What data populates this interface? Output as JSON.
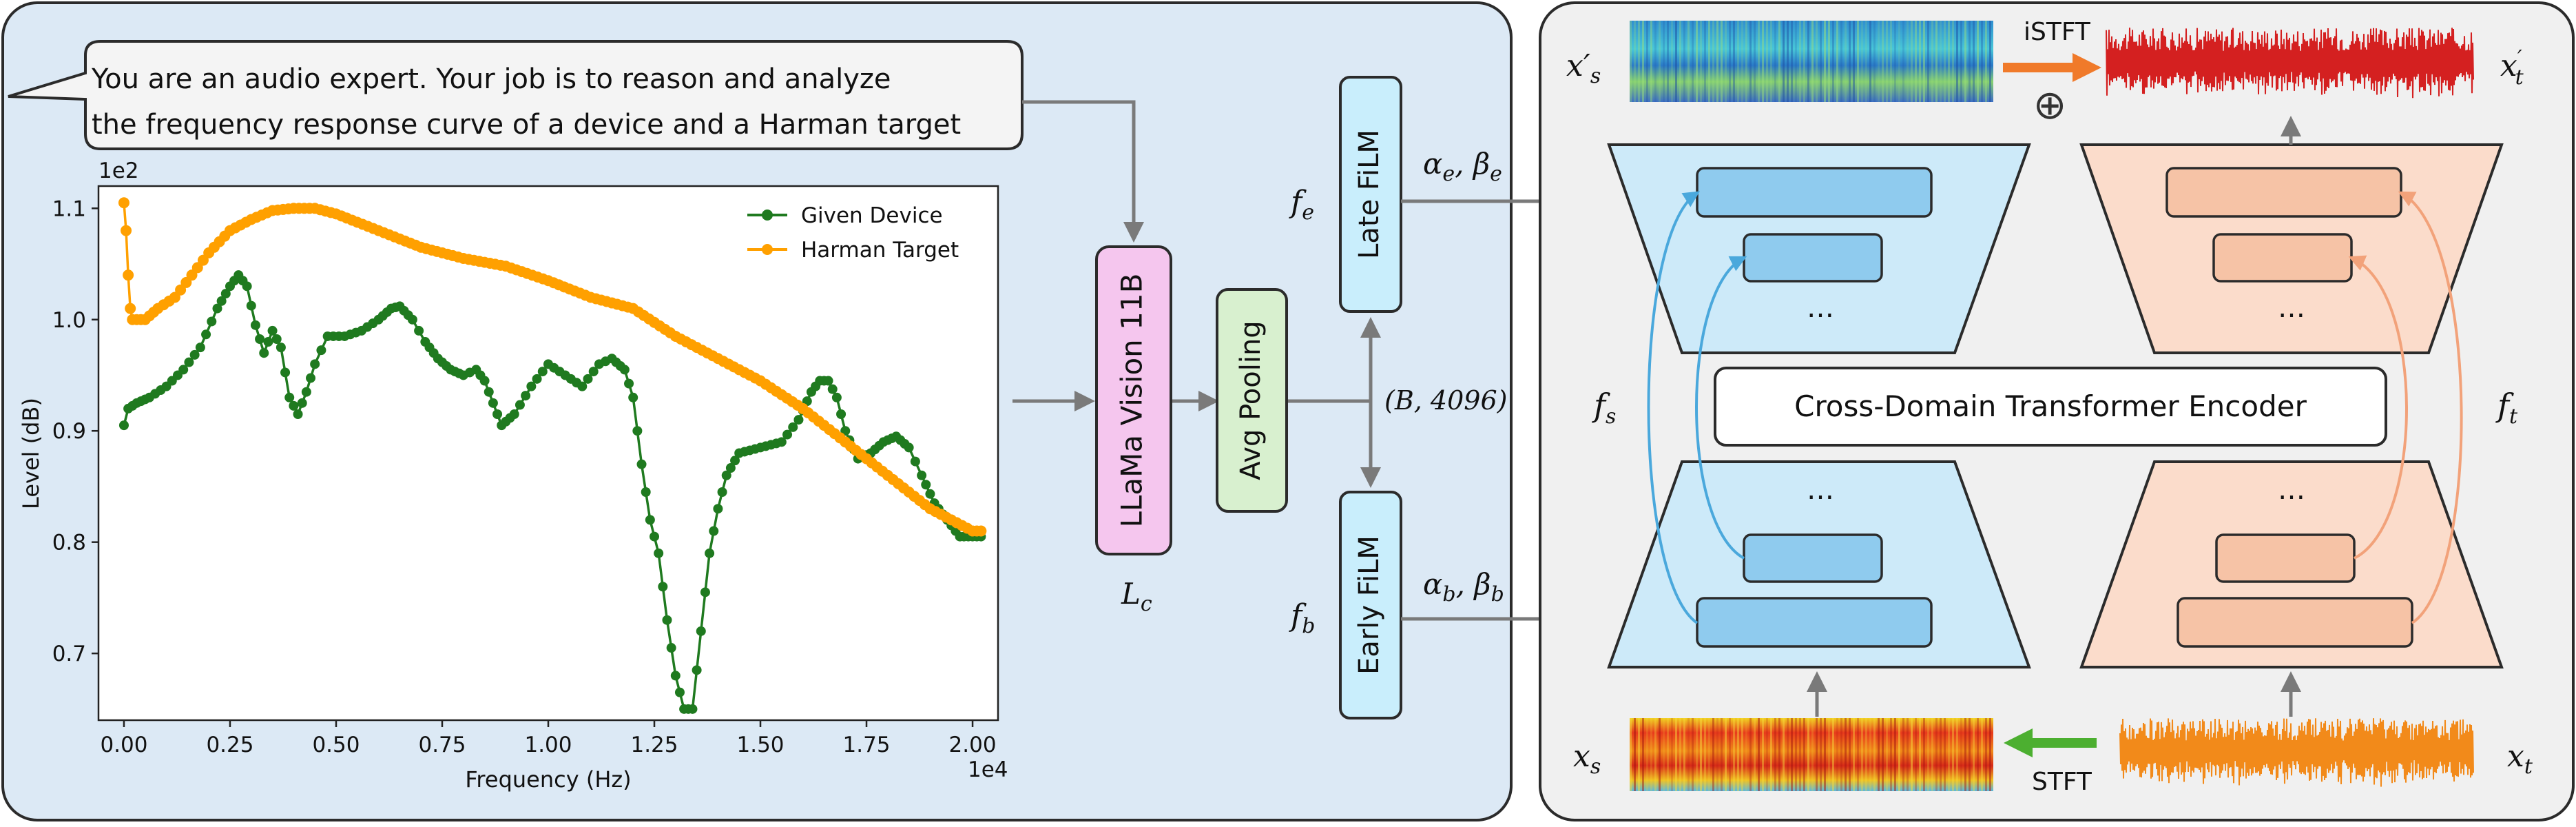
{
  "prompt": {
    "line1": "You are an audio expert. Your job is to reason and analyze",
    "line2": "the frequency response curve of a device and a Harman target"
  },
  "chart_data": {
    "type": "line",
    "title": "",
    "xlabel": "Frequency (Hz)",
    "ylabel": "Level (dB)",
    "x_multiplier": "1e4",
    "y_multiplier": "1e2",
    "xlim": [
      -0.06,
      2.06
    ],
    "ylim": [
      0.64,
      1.12
    ],
    "x_ticks": [
      0.0,
      0.25,
      0.5,
      0.75,
      1.0,
      1.25,
      1.5,
      1.75,
      2.0
    ],
    "x_tick_labels": [
      "0.00",
      "0.25",
      "0.50",
      "0.75",
      "1.00",
      "1.25",
      "1.50",
      "1.75",
      "2.00"
    ],
    "y_ticks": [
      0.7,
      0.8,
      0.9,
      1.0,
      1.1
    ],
    "y_tick_labels": [
      "0.7",
      "0.8",
      "0.9",
      "1.0",
      "1.1"
    ],
    "legend_position": "top-right",
    "grid": false,
    "series": [
      {
        "name": "Given Device",
        "color": "#1f7a1f",
        "x": [
          0.0,
          0.01,
          0.03,
          0.06,
          0.1,
          0.14,
          0.18,
          0.22,
          0.25,
          0.27,
          0.29,
          0.31,
          0.33,
          0.35,
          0.37,
          0.39,
          0.41,
          0.43,
          0.45,
          0.48,
          0.52,
          0.56,
          0.6,
          0.63,
          0.65,
          0.68,
          0.71,
          0.74,
          0.77,
          0.8,
          0.83,
          0.85,
          0.87,
          0.89,
          0.92,
          0.96,
          1.0,
          1.04,
          1.08,
          1.12,
          1.15,
          1.18,
          1.2,
          1.22,
          1.24,
          1.26,
          1.28,
          1.3,
          1.32,
          1.34,
          1.36,
          1.38,
          1.4,
          1.42,
          1.45,
          1.5,
          1.55,
          1.59,
          1.62,
          1.64,
          1.66,
          1.68,
          1.7,
          1.73,
          1.76,
          1.79,
          1.82,
          1.85,
          1.88,
          1.91,
          1.94,
          1.97,
          2.0,
          2.02
        ],
        "y": [
          0.905,
          0.92,
          0.925,
          0.93,
          0.94,
          0.955,
          0.975,
          1.01,
          1.03,
          1.04,
          1.03,
          0.995,
          0.97,
          0.99,
          0.975,
          0.93,
          0.915,
          0.935,
          0.96,
          0.985,
          0.985,
          0.99,
          1.0,
          1.01,
          1.012,
          1.0,
          0.98,
          0.965,
          0.955,
          0.95,
          0.955,
          0.945,
          0.925,
          0.905,
          0.915,
          0.94,
          0.96,
          0.95,
          0.94,
          0.96,
          0.965,
          0.955,
          0.93,
          0.87,
          0.82,
          0.79,
          0.73,
          0.68,
          0.65,
          0.65,
          0.72,
          0.79,
          0.83,
          0.86,
          0.88,
          0.885,
          0.89,
          0.91,
          0.935,
          0.945,
          0.945,
          0.93,
          0.9,
          0.875,
          0.88,
          0.89,
          0.895,
          0.885,
          0.86,
          0.835,
          0.82,
          0.805,
          0.805,
          0.805
        ]
      },
      {
        "name": "Harman Target",
        "color": "#ffa000",
        "x": [
          0.0,
          0.005,
          0.01,
          0.015,
          0.02,
          0.03,
          0.05,
          0.08,
          0.12,
          0.16,
          0.2,
          0.25,
          0.3,
          0.35,
          0.4,
          0.45,
          0.5,
          0.6,
          0.7,
          0.8,
          0.9,
          1.0,
          1.1,
          1.2,
          1.3,
          1.4,
          1.5,
          1.6,
          1.7,
          1.8,
          1.9,
          2.0,
          2.02
        ],
        "y": [
          1.105,
          1.08,
          1.04,
          1.01,
          1.0,
          1.0,
          1.0,
          1.01,
          1.02,
          1.04,
          1.06,
          1.08,
          1.09,
          1.098,
          1.1,
          1.1,
          1.095,
          1.08,
          1.065,
          1.055,
          1.048,
          1.035,
          1.02,
          1.01,
          0.985,
          0.965,
          0.945,
          0.92,
          0.89,
          0.86,
          0.83,
          0.81,
          0.81
        ]
      }
    ]
  },
  "blocks": {
    "llama": "LLaMa Vision 11B",
    "avg_pool": "Avg Pooling",
    "late_film": "Late FiLM",
    "early_film": "Early FiLM",
    "transformer": "Cross-Domain Transformer Encoder",
    "istft": "iSTFT",
    "stft": "STFT",
    "ellipsis": "…",
    "oplus": "⊕"
  },
  "math": {
    "Lc": "L",
    "Lc_sub": "c",
    "shape": "(B, 4096)",
    "fe": "f",
    "fe_sub": "e",
    "fb": "f",
    "fb_sub": "b",
    "ae_be": "α",
    "ae_sub": "e",
    "be": "β",
    "be_sub": "e",
    "ab_bb": "α",
    "ab_sub": "b",
    "bb": "β",
    "bb_sub": "b",
    "fs": "f",
    "fs_sub": "s",
    "ft": "f",
    "ft_sub": "t",
    "xs": "x",
    "xs_sub": "s",
    "xt": "x",
    "xt_sub": "t",
    "xs_prime": "x′",
    "xs_prime_sub": "s",
    "xt_prime": "x",
    "xt_prime_sup": "′",
    "xt_prime_sub": "t"
  },
  "colors": {
    "left_panel_bg": "#dce9f5",
    "right_panel_bg": "#f0f0f0",
    "llama_fill": "#f5c6ee",
    "avg_fill": "#d8f0cf",
    "film_fill": "#c9eefc",
    "enc_blue": "#cdeaf9",
    "enc_blue_bar": "#8fcbee",
    "enc_orange": "#fbdccb",
    "enc_orange_bar": "#f6c3a6",
    "arrow_gray": "#7a7a7a",
    "arrow_blue": "#4aa8dc",
    "arrow_salmon": "#f2a27a",
    "arrow_orange": "#f07a2a",
    "arrow_green": "#4caf30"
  }
}
